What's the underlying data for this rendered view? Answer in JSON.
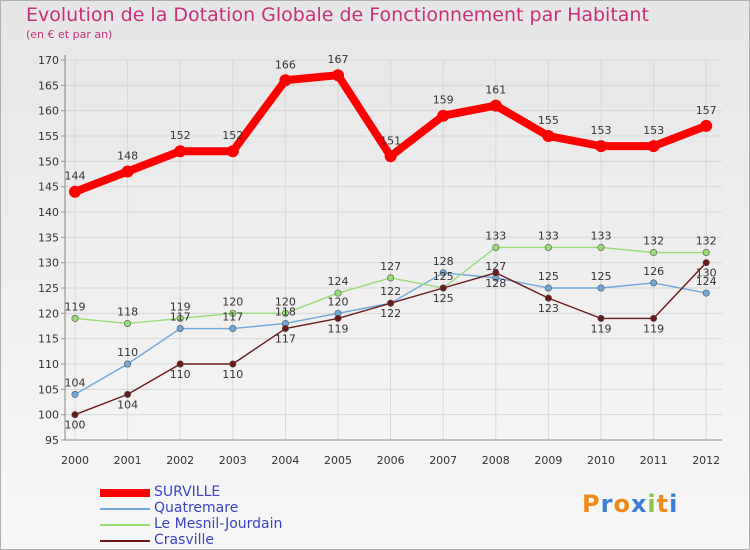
{
  "title": "Evolution de la Dotation Globale de Fonctionnement par Habitant",
  "subtitle": "(en € et par an)",
  "logo": "Proxiti",
  "chart_data": {
    "type": "line",
    "title": "Evolution de la Dotation Globale de Fonctionnement par Habitant",
    "subtitle": "(en € et par an)",
    "x": [
      "2000",
      "2001",
      "2002",
      "2003",
      "2004",
      "2005",
      "2006",
      "2007",
      "2008",
      "2009",
      "2010",
      "2011",
      "2012"
    ],
    "ylim": [
      95,
      170
    ],
    "yticks": [
      95,
      100,
      105,
      110,
      115,
      120,
      125,
      130,
      135,
      140,
      145,
      150,
      155,
      160,
      165,
      170
    ],
    "grid": true,
    "legend_position": "bottom-left",
    "series": [
      {
        "name": "SURVILLE",
        "color": "#ff0000",
        "values": [
          144,
          148,
          152,
          152,
          166,
          167,
          151,
          159,
          161,
          155,
          153,
          153,
          157
        ]
      },
      {
        "name": "Quatremare",
        "color": "#6fa8dc",
        "values": [
          104,
          110,
          117,
          117,
          118,
          120,
          122,
          128,
          127,
          125,
          125,
          126,
          124
        ]
      },
      {
        "name": "Le Mesnil-Jourdain",
        "color": "#99dd77",
        "values": [
          119,
          118,
          119,
          120,
          120,
          124,
          127,
          125,
          133,
          133,
          133,
          132,
          132
        ]
      },
      {
        "name": "Crasville",
        "color": "#6b1a1a",
        "values": [
          100,
          104,
          110,
          110,
          117,
          119,
          122,
          125,
          128,
          123,
          119,
          119,
          130
        ]
      }
    ]
  }
}
